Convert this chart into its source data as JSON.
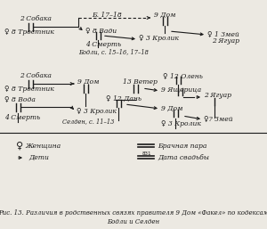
{
  "bg_color": "#ece9e2",
  "text_color": "#1a1a1a",
  "title": "Рис. 13. Различия в родственных связях правителя 9 Дом «Факел» по кодексам\nБодли и Селден",
  "s1": {
    "sobaka_label": "2 Собака",
    "trostnik_label": "♀ 8 Тростник",
    "b_label": "Б. 17–18",
    "vadi_label": "♀ 8 Вади",
    "smert_label": "4 Смерть",
    "bodly_label": "Бодли, с. 15–16, 17–18",
    "dom9_label": "9 Дом",
    "krolik_label": "♀ 3 Кролик",
    "zmey_label": "♀ 1 Змей",
    "yaguar_label": "2 Ягуар"
  },
  "s2": {
    "sobaka_label": "2 Собака",
    "trostnik_label": "♀ 8 Тростник",
    "voda_label": "♀ 8 Вода",
    "smert_label": "4 Смерть",
    "dom9_label": "9 Дом",
    "krolik_label": "♀ 3 Кролик",
    "selden_label": "Селден, с. 11–13",
    "veter_label": "13 Ветер",
    "dan_label": "♀ 12 Дань",
    "olen_label": "♀ 12 Олень",
    "yashch_label": "9 Ящерица",
    "dom9b_label": "9 Дом",
    "krolik2_label": "♀ 3 Кролик",
    "yaguar_label": "2 Ягуар",
    "zmey_label": "♀? Змей"
  },
  "legend": {
    "fem_sym": "♀",
    "fem_text": "Женщина",
    "child_text": "Дети",
    "couple_text": "Брачная пара",
    "date_num": "831",
    "date_text": "Дата свадьбы"
  }
}
